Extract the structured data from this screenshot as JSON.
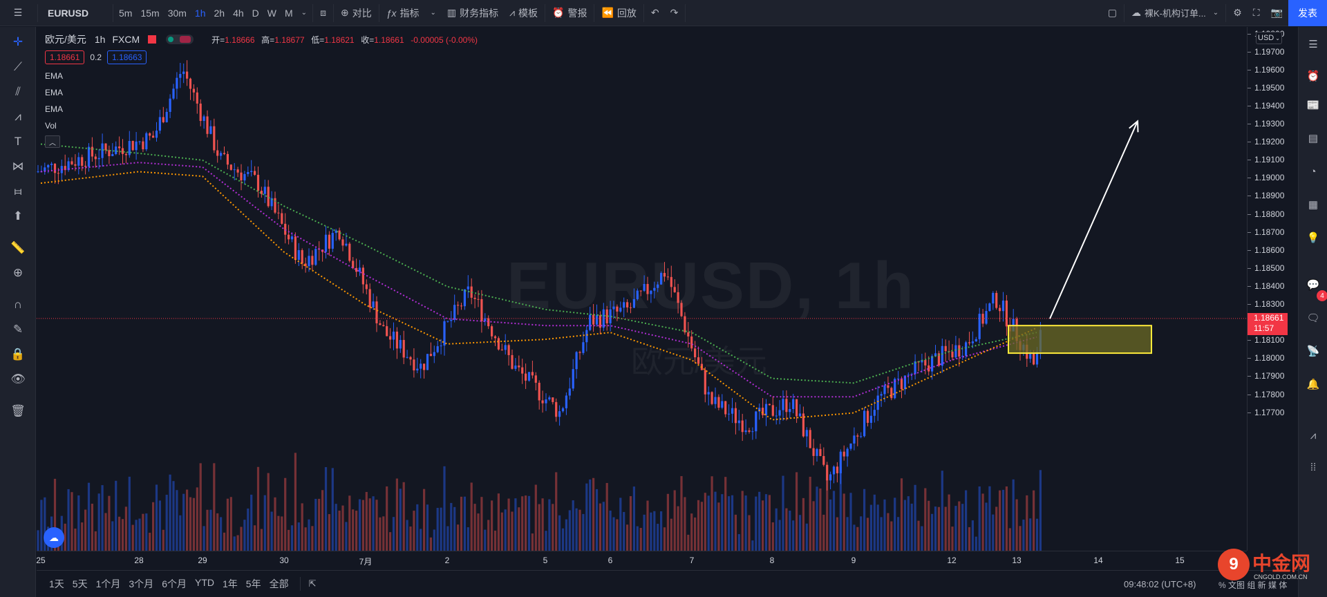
{
  "toolbar": {
    "symbol": "EURUSD",
    "intervals": [
      "5m",
      "15m",
      "30m",
      "1h",
      "2h",
      "4h",
      "D",
      "W",
      "M"
    ],
    "active_interval": "1h",
    "compare": "对比",
    "indicators": "指标",
    "financials": "财务指标",
    "templates": "模板",
    "alerts": "警报",
    "replay": "回放",
    "layout_name": "裸K-机构订单...",
    "publish": "发表"
  },
  "legend": {
    "title": "欧元/美元",
    "interval": "1h",
    "source": "FXCM",
    "open_label": "开=",
    "open": "1.18666",
    "high_label": "高=",
    "high": "1.18677",
    "low_label": "低=",
    "low": "1.18621",
    "close_label": "收=",
    "close": "1.18661",
    "change": "-0.00005 (-0.00%)",
    "bid": "1.18661",
    "spread": "0.2",
    "ask": "1.18663",
    "indicators": [
      "EMA",
      "EMA",
      "EMA",
      "Vol"
    ]
  },
  "watermark": {
    "symbol": "EURUSD, 1h",
    "name": "欧元/美元"
  },
  "price_scale": {
    "currency": "USD",
    "ticks": [
      "1.19800",
      "1.19700",
      "1.19600",
      "1.19500",
      "1.19400",
      "1.19300",
      "1.19200",
      "1.19100",
      "1.19000",
      "1.18900",
      "1.18800",
      "1.18700",
      "1.18600",
      "1.18500",
      "1.18400",
      "1.18300",
      "1.18200",
      "1.18100",
      "1.18000",
      "1.17900",
      "1.17800",
      "1.17700"
    ],
    "current_price": "1.18661",
    "countdown": "11:57"
  },
  "time_scale": {
    "ticks": [
      "25",
      "28",
      "29",
      "30",
      "7月",
      "2",
      "5",
      "6",
      "7",
      "8",
      "9",
      "12",
      "13",
      "14",
      "15"
    ]
  },
  "bottom_bar": {
    "ranges": [
      "1天",
      "5天",
      "1个月",
      "3个月",
      "6个月",
      "YTD",
      "1年",
      "5年",
      "全部"
    ],
    "clock": "09:48:02 (UTC+8)",
    "pane_tabs": "% 文图 组 新 媒 体"
  },
  "logo": {
    "mark": "9",
    "text": "中金网",
    "url": "CNGOLD.COM.CN"
  },
  "badges": {
    "notifications": "4"
  },
  "colors": {
    "up": "#2962ff",
    "down": "#ef5350",
    "ema_fast": "#ff9800",
    "ema_mid": "#b22ed6",
    "ema_slow": "#4caf50",
    "zone_fill": "#6b6a24",
    "zone_border": "#ffeb3b",
    "arrow": "#ffffff",
    "accent": "#2962ff"
  },
  "chart_data": {
    "type": "candlestick",
    "symbol": "EURUSD",
    "interval": "1h",
    "x_labels": [
      "25",
      "28",
      "29",
      "30",
      "7月",
      "2",
      "5",
      "6",
      "7",
      "8",
      "9",
      "12",
      "13",
      "14",
      "15"
    ],
    "ylim": [
      1.1765,
      1.1993
    ],
    "last_close": 1.18661,
    "waypoints": [
      {
        "x": "25",
        "price": 1.193
      },
      {
        "x": "28",
        "price": 1.1945
      },
      {
        "x": "28",
        "price": 1.1975
      },
      {
        "x": "29",
        "price": 1.1935
      },
      {
        "x": "29",
        "price": 1.1925
      },
      {
        "x": "30",
        "price": 1.189
      },
      {
        "x": "30",
        "price": 1.1905
      },
      {
        "x": "7月",
        "price": 1.186
      },
      {
        "x": "7月",
        "price": 1.1845
      },
      {
        "x": "2",
        "price": 1.1878
      },
      {
        "x": "2",
        "price": 1.1845
      },
      {
        "x": "5",
        "price": 1.1825
      },
      {
        "x": "5",
        "price": 1.1865
      },
      {
        "x": "6",
        "price": 1.187
      },
      {
        "x": "6",
        "price": 1.1887
      },
      {
        "x": "7",
        "price": 1.183
      },
      {
        "x": "7",
        "price": 1.182
      },
      {
        "x": "8",
        "price": 1.183
      },
      {
        "x": "8",
        "price": 1.1795
      },
      {
        "x": "9",
        "price": 1.183
      },
      {
        "x": "9",
        "price": 1.1845
      },
      {
        "x": "12",
        "price": 1.1855
      },
      {
        "x": "12",
        "price": 1.1875
      },
      {
        "x": "13",
        "price": 1.1845
      },
      {
        "x": "13",
        "price": 1.18661
      }
    ],
    "ema_series": [
      {
        "values_at_labels": [
          1.1942,
          1.1938,
          1.1935,
          1.1915,
          1.1898,
          1.188,
          1.187,
          1.1867,
          1.186,
          1.184,
          1.1838,
          1.1852,
          1.186
        ]
      },
      {
        "values_at_labels": [
          1.193,
          1.1934,
          1.1932,
          1.1905,
          1.1885,
          1.1866,
          1.1863,
          1.1863,
          1.1855,
          1.1832,
          1.1832,
          1.1848,
          1.1858
        ]
      },
      {
        "values_at_labels": [
          1.1925,
          1.193,
          1.1928,
          1.1895,
          1.1872,
          1.1855,
          1.1857,
          1.186,
          1.1848,
          1.1822,
          1.1825,
          1.1845,
          1.1862
        ]
      }
    ],
    "annotations": [
      {
        "type": "rectangle",
        "price_top": 1.1863,
        "price_bottom": 1.1851
      },
      {
        "type": "arrow",
        "from_price": 1.1866,
        "to_price": 1.1952
      }
    ]
  }
}
